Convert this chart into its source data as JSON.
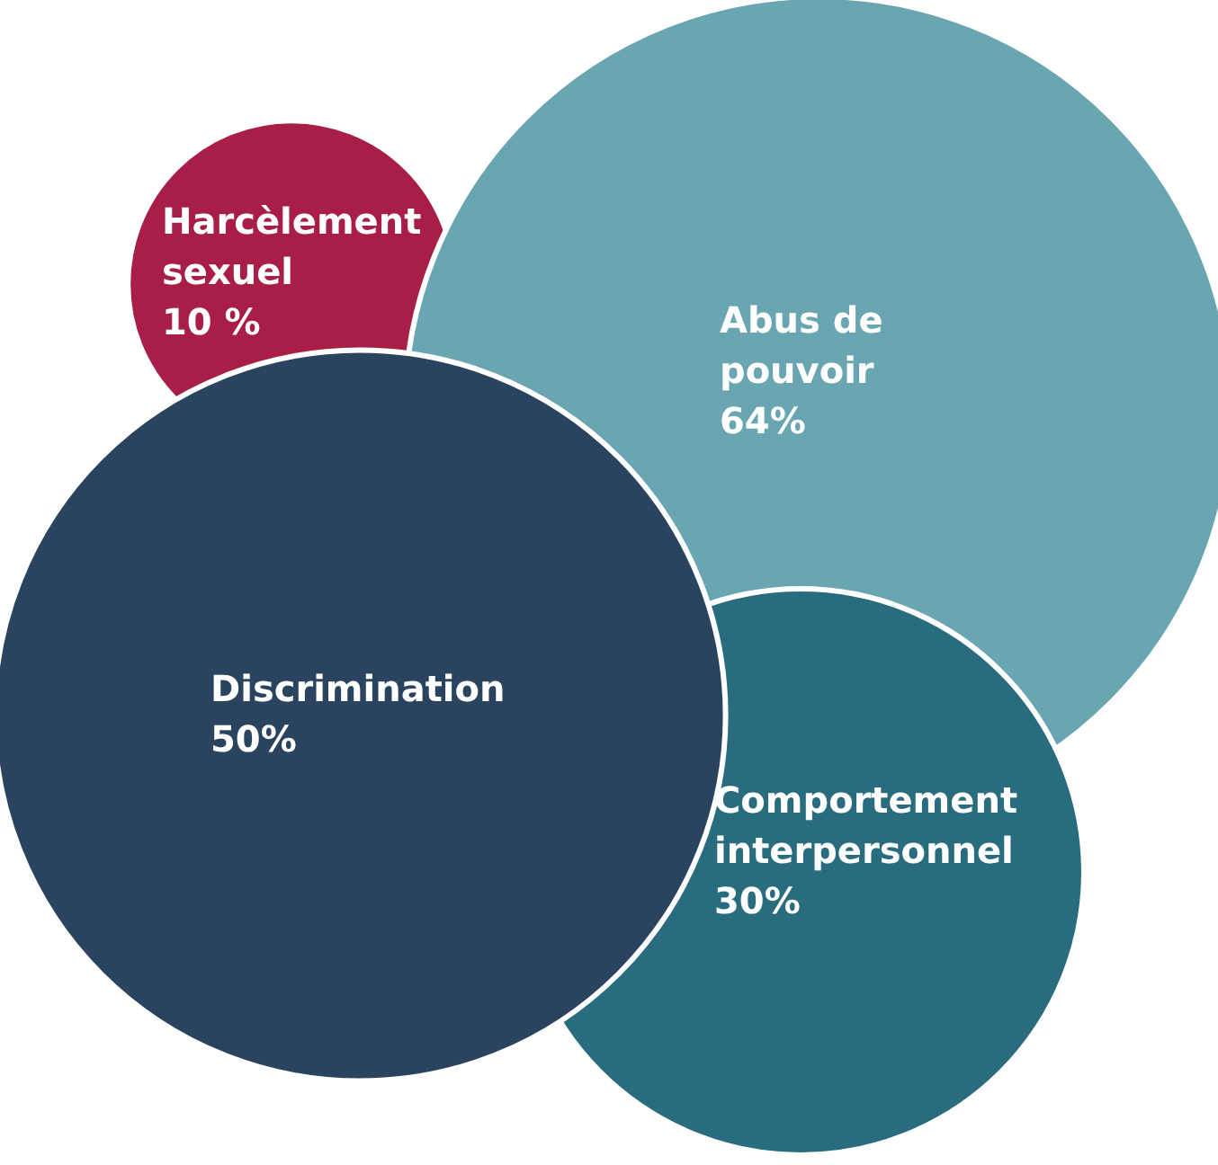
{
  "chart_data": {
    "type": "other",
    "categories": [
      "Harcèlement sexuel",
      "Abus de pouvoir",
      "Comportement interpersonnel",
      "Discrimination"
    ],
    "values": [
      10,
      64,
      30,
      50
    ],
    "value_labels": [
      "10 %",
      "64%",
      "30%",
      "50%"
    ],
    "colors": [
      "#a91e47",
      "#6aa5b2",
      "#286c7e",
      "#2a435e"
    ]
  }
}
